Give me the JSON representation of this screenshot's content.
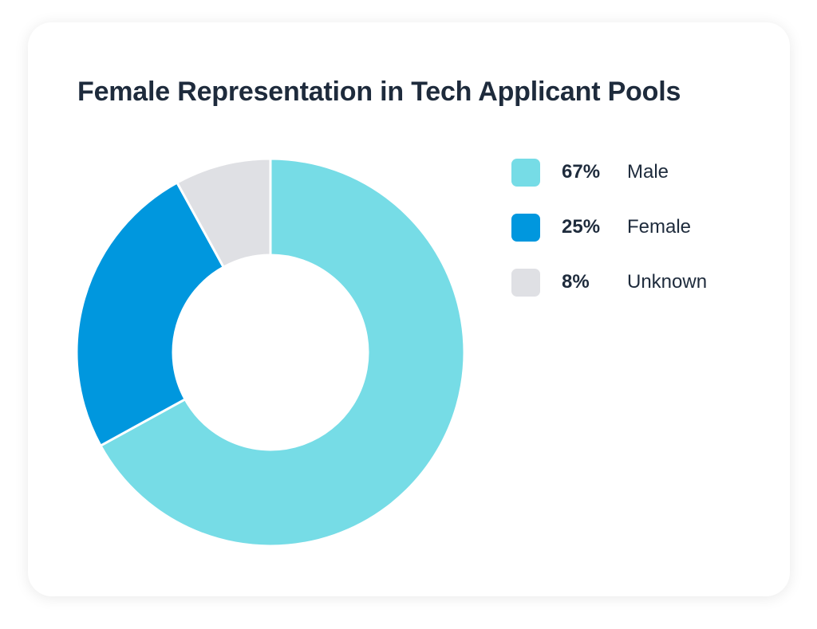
{
  "chart_data": {
    "type": "pie",
    "variant": "donut",
    "title": "Female Representation in Tech Applicant Pools",
    "slices": [
      {
        "label": "Male",
        "value": 67,
        "value_label": "67%",
        "color": "#76dce6"
      },
      {
        "label": "Female",
        "value": 25,
        "value_label": "25%",
        "color": "#0097de"
      },
      {
        "label": "Unknown",
        "value": 8,
        "value_label": "8%",
        "color": "#dfe0e4"
      }
    ],
    "start_angle": "top",
    "direction": "clockwise",
    "legend_placement": "right"
  }
}
